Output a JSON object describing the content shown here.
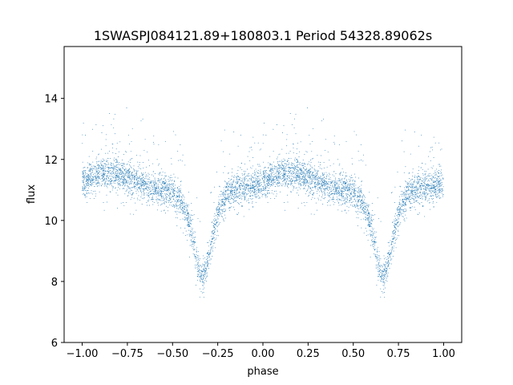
{
  "chart_data": {
    "type": "scatter",
    "title": "1SWASPJ084121.89+180803.1 Period 54328.89062s",
    "xlabel": "phase",
    "ylabel": "flux",
    "xlim": [
      -1.1,
      1.1
    ],
    "ylim": [
      6.0,
      15.7
    ],
    "x_ticks": [
      -1.0,
      -0.75,
      -0.5,
      -0.25,
      0.0,
      0.25,
      0.5,
      0.75,
      1.0
    ],
    "x_tick_labels": [
      "−1.00",
      "−0.75",
      "−0.50",
      "−0.25",
      "0.00",
      "0.25",
      "0.50",
      "0.75",
      "1.00"
    ],
    "y_ticks": [
      6,
      8,
      10,
      12,
      14
    ],
    "y_tick_labels": [
      "6",
      "8",
      "10",
      "12",
      "14"
    ],
    "grid": false,
    "legend": "none",
    "point_color": "#1f77b4",
    "x_range": [
      -1.0,
      1.0
    ],
    "profile": {
      "phase": [
        0.0,
        0.1,
        0.2,
        0.3,
        0.4,
        0.5,
        0.55,
        0.6,
        0.62,
        0.64,
        0.66,
        0.68,
        0.7,
        0.72,
        0.75,
        0.8,
        0.9,
        1.0
      ],
      "flux": [
        11.2,
        11.6,
        11.5,
        11.3,
        11.0,
        10.9,
        10.5,
        9.8,
        9.2,
        8.5,
        8.2,
        8.3,
        8.8,
        9.4,
        10.2,
        10.9,
        11.1,
        11.2
      ]
    },
    "features": {
      "primary_minimum": {
        "phase": [
          -0.33,
          0.67
        ],
        "flux": 8.1
      },
      "maximum": {
        "phase": [
          -0.85,
          0.15
        ],
        "flux": 11.6
      },
      "scatter_sigma": 0.25,
      "points_per_cycle": 3000
    }
  }
}
